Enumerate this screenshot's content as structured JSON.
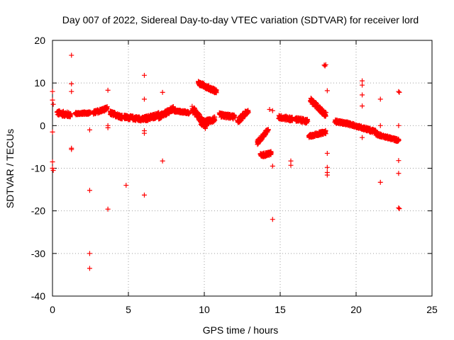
{
  "chart_data": {
    "type": "scatter",
    "title": "Day 007 of 2022, Sidereal Day-to-day VTEC variation (SDTVAR) for receiver lord",
    "xlabel": "GPS time / hours",
    "ylabel": "SDTVAR / TECUs",
    "xlim": [
      0,
      25
    ],
    "ylim": [
      -40,
      20
    ],
    "x_ticks": [
      0,
      5,
      10,
      15,
      20,
      25
    ],
    "y_ticks": [
      -40,
      -30,
      -20,
      -10,
      0,
      10,
      20
    ],
    "x_tick_labels": [
      "0",
      "5",
      "10",
      "15",
      "20",
      "25"
    ],
    "y_tick_labels": [
      "-40",
      "-30",
      "-20",
      "-10",
      "0",
      "10",
      "20"
    ],
    "grid": true,
    "marker": "+",
    "color": "#ff0000",
    "dense_segments": [
      {
        "x0": 0.3,
        "x1": 1.2,
        "y0": 3.0,
        "y1": 2.5,
        "spread": 1.2
      },
      {
        "x0": 1.5,
        "x1": 2.5,
        "y0": 2.8,
        "y1": 3.0,
        "spread": 0.6
      },
      {
        "x0": 2.7,
        "x1": 3.6,
        "y0": 3.0,
        "y1": 4.0,
        "spread": 0.9
      },
      {
        "x0": 3.8,
        "x1": 4.6,
        "y0": 3.0,
        "y1": 2.0,
        "spread": 1.0
      },
      {
        "x0": 4.7,
        "x1": 6.0,
        "y0": 2.0,
        "y1": 1.5,
        "spread": 1.0
      },
      {
        "x0": 6.0,
        "x1": 7.0,
        "y0": 1.5,
        "y1": 2.5,
        "spread": 1.2
      },
      {
        "x0": 7.0,
        "x1": 8.0,
        "y0": 2.0,
        "y1": 4.0,
        "spread": 1.2
      },
      {
        "x0": 8.0,
        "x1": 9.0,
        "y0": 3.5,
        "y1": 3.0,
        "spread": 0.7
      },
      {
        "x0": 9.2,
        "x1": 10.1,
        "y0": 4.0,
        "y1": 0.0,
        "spread": 1.5
      },
      {
        "x0": 9.6,
        "x1": 10.8,
        "y0": 10.0,
        "y1": 8.0,
        "spread": 1.0
      },
      {
        "x0": 9.8,
        "x1": 10.7,
        "y0": 0.5,
        "y1": 1.5,
        "spread": 1.2
      },
      {
        "x0": 11.0,
        "x1": 12.0,
        "y0": 2.5,
        "y1": 2.0,
        "spread": 1.0
      },
      {
        "x0": 12.2,
        "x1": 12.9,
        "y0": 1.0,
        "y1": 3.5,
        "spread": 1.2
      },
      {
        "x0": 13.5,
        "x1": 14.2,
        "y0": -4.0,
        "y1": -1.0,
        "spread": 1.0
      },
      {
        "x0": 13.7,
        "x1": 14.4,
        "y0": -7.0,
        "y1": -6.5,
        "spread": 0.9
      },
      {
        "x0": 14.9,
        "x1": 15.8,
        "y0": 2.0,
        "y1": 1.5,
        "spread": 1.0
      },
      {
        "x0": 16.0,
        "x1": 16.8,
        "y0": 1.5,
        "y1": 1.0,
        "spread": 1.0
      },
      {
        "x0": 17.0,
        "x1": 18.0,
        "y0": 6.0,
        "y1": 2.5,
        "spread": 1.2
      },
      {
        "x0": 16.9,
        "x1": 18.0,
        "y0": -2.5,
        "y1": -1.5,
        "spread": 0.8
      },
      {
        "x0": 18.6,
        "x1": 19.4,
        "y0": 1.0,
        "y1": 0.5,
        "spread": 0.8
      },
      {
        "x0": 19.4,
        "x1": 20.4,
        "y0": 0.5,
        "y1": -0.5,
        "spread": 0.8
      },
      {
        "x0": 20.4,
        "x1": 21.3,
        "y0": -0.5,
        "y1": -1.5,
        "spread": 0.9
      },
      {
        "x0": 21.3,
        "x1": 22.8,
        "y0": -2.0,
        "y1": -3.5,
        "spread": 0.7
      }
    ],
    "points": [
      {
        "x": 0.0,
        "y": 8.0
      },
      {
        "x": 0.0,
        "y": 6.0
      },
      {
        "x": 0.05,
        "y": 5.0
      },
      {
        "x": 0.0,
        "y": -1.5
      },
      {
        "x": 0.0,
        "y": -8.5
      },
      {
        "x": 0.0,
        "y": -10.0
      },
      {
        "x": 0.05,
        "y": -10.5
      },
      {
        "x": 1.25,
        "y": 16.5
      },
      {
        "x": 1.25,
        "y": 9.8
      },
      {
        "x": 1.25,
        "y": 8.0
      },
      {
        "x": 1.25,
        "y": -5.3
      },
      {
        "x": 1.25,
        "y": -5.6
      },
      {
        "x": 2.45,
        "y": -1.0
      },
      {
        "x": 2.45,
        "y": -15.2
      },
      {
        "x": 2.45,
        "y": -30.0
      },
      {
        "x": 2.45,
        "y": -33.5
      },
      {
        "x": 3.65,
        "y": 8.3
      },
      {
        "x": 3.65,
        "y": 0.0
      },
      {
        "x": 3.65,
        "y": -0.5
      },
      {
        "x": 3.65,
        "y": -19.6
      },
      {
        "x": 4.85,
        "y": -14.0
      },
      {
        "x": 6.05,
        "y": 11.8
      },
      {
        "x": 6.05,
        "y": 6.2
      },
      {
        "x": 6.05,
        "y": -1.2
      },
      {
        "x": 6.05,
        "y": -1.8
      },
      {
        "x": 6.05,
        "y": -16.3
      },
      {
        "x": 7.25,
        "y": 7.8
      },
      {
        "x": 7.25,
        "y": -8.3
      },
      {
        "x": 14.5,
        "y": 3.5
      },
      {
        "x": 14.3,
        "y": 3.8
      },
      {
        "x": 14.5,
        "y": -9.5
      },
      {
        "x": 14.5,
        "y": -22.0
      },
      {
        "x": 15.7,
        "y": -8.3
      },
      {
        "x": 15.7,
        "y": -9.3
      },
      {
        "x": 17.9,
        "y": 14.2
      },
      {
        "x": 17.95,
        "y": 14.0
      },
      {
        "x": 18.0,
        "y": 14.3
      },
      {
        "x": 18.1,
        "y": 8.2
      },
      {
        "x": 18.1,
        "y": -6.5
      },
      {
        "x": 18.1,
        "y": -9.8
      },
      {
        "x": 18.1,
        "y": -11.0
      },
      {
        "x": 18.1,
        "y": -11.6
      },
      {
        "x": 20.4,
        "y": 10.5
      },
      {
        "x": 20.4,
        "y": 9.5
      },
      {
        "x": 20.4,
        "y": 7.2
      },
      {
        "x": 20.4,
        "y": 4.6
      },
      {
        "x": 20.4,
        "y": -2.8
      },
      {
        "x": 21.6,
        "y": 6.2
      },
      {
        "x": 21.6,
        "y": 0.0
      },
      {
        "x": 21.6,
        "y": -13.3
      },
      {
        "x": 22.8,
        "y": 8.0
      },
      {
        "x": 22.85,
        "y": 7.8
      },
      {
        "x": 22.8,
        "y": 0.0
      },
      {
        "x": 22.8,
        "y": -8.2
      },
      {
        "x": 22.8,
        "y": -11.2
      },
      {
        "x": 22.8,
        "y": -19.3
      },
      {
        "x": 22.85,
        "y": -19.5
      }
    ]
  }
}
